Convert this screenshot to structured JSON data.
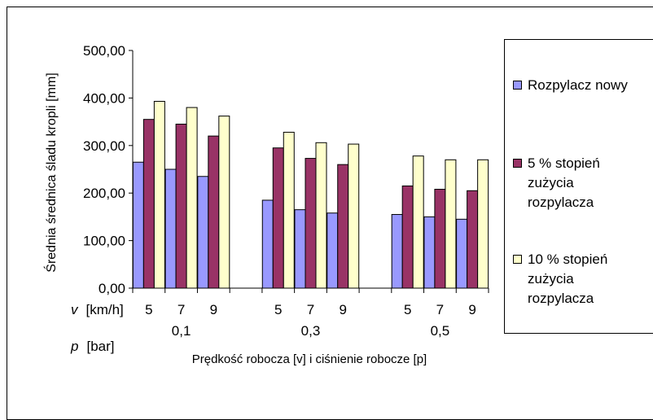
{
  "chart_data": {
    "type": "bar",
    "title": "",
    "ylabel": "Średnia średnica śladu kropli [mm]",
    "xlabel": "Prędkość robocza [v] i ciśnienie robocze [p]",
    "ylim": [
      0,
      500
    ],
    "yticks": [
      "0,00",
      "100,00",
      "200,00",
      "300,00",
      "400,00",
      "500,00"
    ],
    "grid": false,
    "legend_position": "right",
    "v_row_label": "v",
    "v_row_unit": "[km/h]",
    "p_row_label": "p",
    "p_row_unit": "[bar]",
    "groups": [
      {
        "p": "0,1",
        "v": [
          "5",
          "7",
          "9"
        ]
      },
      {
        "p": "0,3",
        "v": [
          "5",
          "7",
          "9"
        ]
      },
      {
        "p": "0,5",
        "v": [
          "5",
          "7",
          "9"
        ]
      }
    ],
    "series": [
      {
        "name": "Rozpylacz nowy",
        "color": "#9999ff",
        "values": [
          [
            265,
            250,
            235
          ],
          [
            185,
            165,
            158
          ],
          [
            155,
            150,
            145
          ]
        ]
      },
      {
        "name": "5 % stopień zużycia rozpylacza",
        "color": "#993366",
        "values": [
          [
            355,
            345,
            320
          ],
          [
            295,
            273,
            260
          ],
          [
            215,
            208,
            205
          ]
        ]
      },
      {
        "name": "10 % stopień zużycia rozpylacza",
        "color": "#ffffcc",
        "values": [
          [
            393,
            380,
            362
          ],
          [
            328,
            306,
            303
          ],
          [
            278,
            270,
            270
          ]
        ]
      }
    ]
  },
  "legend": {
    "items": [
      {
        "label": "Rozpylacz nowy",
        "color": "#9999ff"
      },
      {
        "label": "5 % stopień\nzużycia\nrozpylacza",
        "color": "#993366"
      },
      {
        "label": "10 % stopień\nzużycia\nrozpylacza",
        "color": "#ffffcc"
      }
    ]
  }
}
